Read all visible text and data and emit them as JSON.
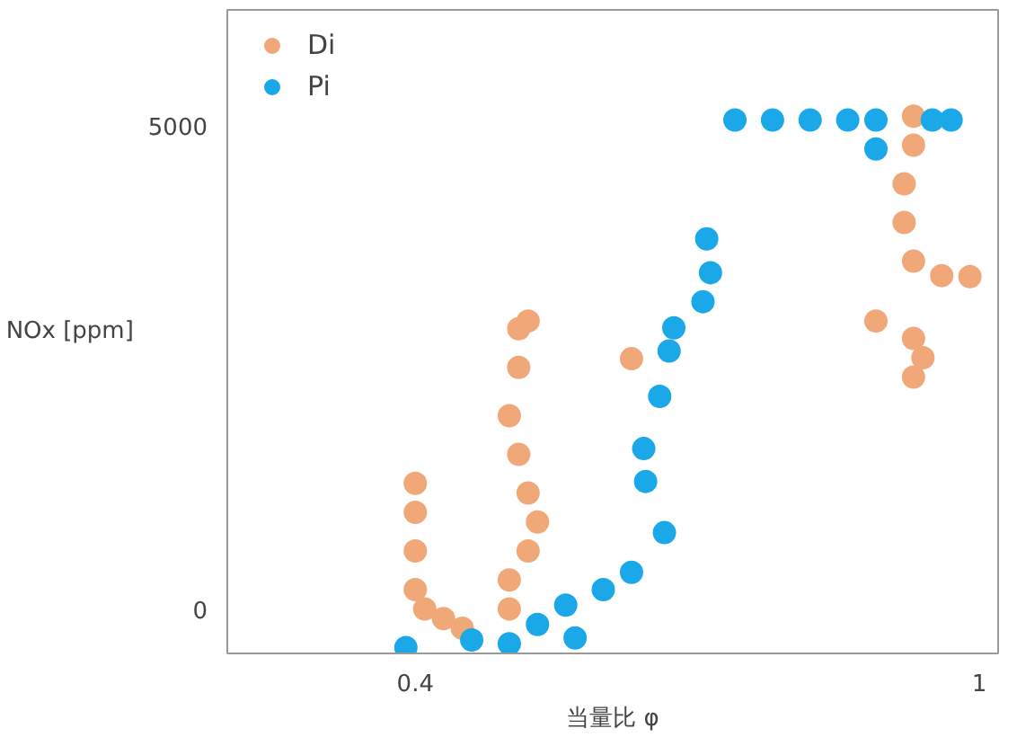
{
  "chart_data": {
    "type": "scatter",
    "xlabel": "当量比 φ",
    "ylabel": "NOx [ppm]",
    "xlim": [
      0.2,
      1.02
    ],
    "ylim": [
      -460,
      6200
    ],
    "xticks": [
      0.4,
      1
    ],
    "yticks": [
      0,
      5000
    ],
    "grid": false,
    "legend": "top left",
    "marker": "circle",
    "series": [
      {
        "name": "Di",
        "color": "#f0a878",
        "x": [
          0.4,
          0.4,
          0.4,
          0.4,
          0.41,
          0.43,
          0.45,
          0.51,
          0.51,
          0.5,
          0.51,
          0.52,
          0.53,
          0.52,
          0.5,
          0.5,
          0.52,
          0.63,
          0.93,
          0.93,
          0.92,
          0.92,
          0.93,
          0.96,
          0.99,
          0.89,
          0.93,
          0.94,
          0.93
        ],
        "values": [
          1300,
          1000,
          600,
          200,
          0,
          -100,
          -200,
          2900,
          2500,
          2000,
          1600,
          1200,
          900,
          600,
          300,
          0,
          2980,
          2590,
          5100,
          4800,
          4400,
          4000,
          3600,
          3450,
          3440,
          2980,
          2800,
          2600,
          2400
        ]
      },
      {
        "name": "Pi",
        "color": "#1aa8e8",
        "x": [
          0.39,
          0.46,
          0.5,
          0.53,
          0.57,
          0.56,
          0.6,
          0.63,
          0.665,
          0.645,
          0.643,
          0.66,
          0.67,
          0.675,
          0.706,
          0.714,
          0.71,
          0.74,
          0.78,
          0.82,
          0.86,
          0.89,
          0.89,
          0.95,
          0.97
        ],
        "values": [
          -400,
          -320,
          -360,
          -160,
          -300,
          40,
          200,
          380,
          790,
          1320,
          1660,
          2200,
          2670,
          2910,
          3180,
          3480,
          3830,
          5060,
          5060,
          5060,
          5060,
          5060,
          4760,
          5060,
          5060
        ]
      }
    ]
  }
}
